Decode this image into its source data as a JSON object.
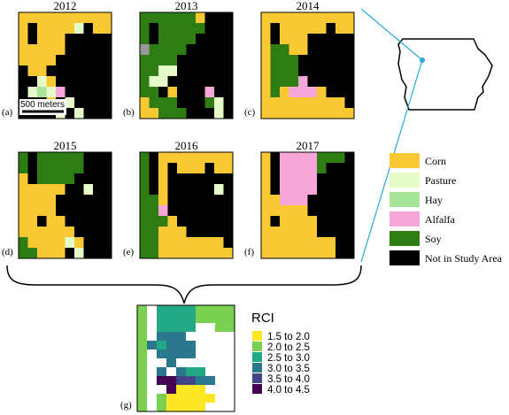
{
  "colors": {
    "corn": "#f9c934",
    "pasture": "#e6fcc8",
    "hay": "#a7e59a",
    "alfalfa": "#f7a6d9",
    "soy": "#2e7d12",
    "not_in_study_area": "#000000",
    "gray": "#999999",
    "outline": "#000000",
    "connector": "#29a7df",
    "rci_1": "#fde725",
    "rci_2": "#7ad151",
    "rci_3": "#22a884",
    "rci_4": "#2a788e",
    "rci_5": "#414487",
    "rci_6": "#440154",
    "blank": "#ffffff"
  },
  "panels": [
    {
      "year": "2012",
      "label": "(a)",
      "has_scale": true,
      "grid": [
        "YYYYYYYYYY",
        "YKYYYYPKYY",
        "YKYYYKKKKK",
        "YYYYYKKKKK",
        "YYYYKKKKKK",
        "KYYKKKKKKK",
        "KKPYKKKKKK",
        "KPHPAKKKKK",
        "KKKYKPKKKK",
        "KKKKPKPKKK"
      ]
    },
    {
      "year": "2013",
      "label": "(b)",
      "has_scale": false,
      "grid": [
        "SSSSSSYKKK",
        "SKSSSSSKKK",
        "SKSSSSKKKK",
        "GSSSSKKKKK",
        "SSSSKKKKKK",
        "SSPPKKKKKK",
        "SPPKKKKKKK",
        "SSKYKKKAKK",
        "YSSSKKKSPK",
        "YYSSSKKKPK"
      ]
    },
    {
      "year": "2014",
      "label": "(c)",
      "has_scale": false,
      "grid": [
        "YYYYYYYYYY",
        "YKYYYYYKYY",
        "YKYYYKKKKK",
        "YSSYYKKKKK",
        "YSSSKKKKKK",
        "YSSSKKKKKK",
        "YSSSAKKKKK",
        "YSYAAAYKKK",
        "YYYYYYYYYK",
        "YYYYYYYYYY"
      ]
    },
    {
      "year": "2015",
      "label": "(d)",
      "has_scale": false,
      "grid": [
        "SKSSSSSKKK",
        "SKSSSSSKKK",
        "YKSSSSKKKK",
        "YYYYYKKPKK",
        "YYYYKKKKKK",
        "YYYYKKKKKK",
        "YYKYYKKKKK",
        "YYYYYYKKKK",
        "SYYYYPYKKK",
        "SSYYYKPKKK"
      ]
    },
    {
      "year": "2016",
      "label": "(e)",
      "has_scale": false,
      "grid": [
        "SKYYYYYYYY",
        "SKYKYYYKYY",
        "SKYKKKKKKK",
        "SKYKKKKKPK",
        "SSYKKKKKKK",
        "SSAKKKKKKK",
        "SSSYKKKKKK",
        "SSYYYKKKKK",
        "SSYYYYYYYK",
        "SSYYYYYYYY"
      ]
    },
    {
      "year": "2017",
      "label": "(f)",
      "has_scale": false,
      "grid": [
        "YKAAAASSSK",
        "YKAAAASKKK",
        "YKAAAAKKKK",
        "YKAAAAKKKK",
        "YYAAAKKKKK",
        "YYYYYKKKKK",
        "YKYYYYKKKK",
        "YYYYYYKKKK",
        "YYYYYYYYKK",
        "YYYYYYYYKK"
      ]
    }
  ],
  "scale_bar_label": "500 meters",
  "legend": [
    {
      "key": "corn",
      "label": "Corn"
    },
    {
      "key": "pasture",
      "label": "Pasture"
    },
    {
      "key": "hay",
      "label": "Hay"
    },
    {
      "key": "alfalfa",
      "label": "Alfalfa"
    },
    {
      "key": "soy",
      "label": "Soy"
    },
    {
      "key": "not_in_study_area",
      "label": "Not in Study Area"
    }
  ],
  "rci_panel": {
    "label": "(g)",
    "grid": [
      "2W33332222",
      "2W33332222",
      "2W3333WW22",
      "2W444WWWWW",
      "243444WWWW",
      "2W4444WWWW",
      "2WW4WWWWWW",
      "2W4W433WWW",
      "2W665544WW",
      "2WW6111WWW",
      "2W211111WW",
      "2W21111WWW"
    ]
  },
  "rci_legend": {
    "title": "RCI",
    "items": [
      {
        "key": "rci_1",
        "label": "1.5 to 2.0"
      },
      {
        "key": "rci_2",
        "label": "2.0 to 2.5"
      },
      {
        "key": "rci_3",
        "label": "2.5 to 3.0"
      },
      {
        "key": "rci_4",
        "label": "3.0 to 3.5"
      },
      {
        "key": "rci_5",
        "label": "3.5 to 4.0"
      },
      {
        "key": "rci_6",
        "label": "4.0 to 4.5"
      }
    ]
  }
}
